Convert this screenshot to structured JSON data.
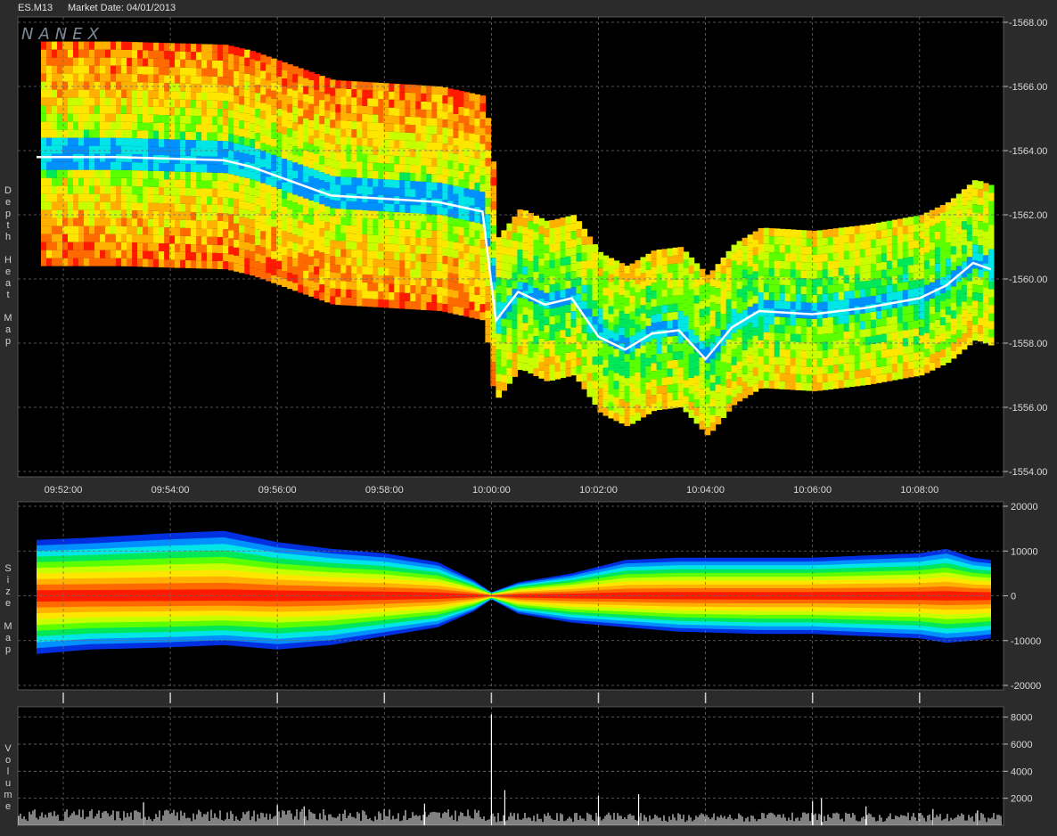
{
  "header": {
    "symbol": "ES.M13",
    "market_date": "Market Date: 04/01/2013"
  },
  "logo": "NANEX",
  "panels": {
    "depth": {
      "side_label": "Depth Heat Map"
    },
    "size": {
      "side_label": "Size Map"
    },
    "volume": {
      "side_label": "Volume"
    }
  },
  "colors": {
    "background": "#000000",
    "frame": "#2b2b2b",
    "grid": "#6a6a6a",
    "price_line": "#ffffff",
    "heat_scale": [
      "#ff1a00",
      "#ff6a00",
      "#ffb000",
      "#ffe600",
      "#c8ff00",
      "#5cff00",
      "#00e85a",
      "#00e6e6",
      "#0090ff",
      "#0030e0"
    ]
  },
  "chart_data": [
    {
      "type": "heatmap",
      "title": "",
      "xlabel": "",
      "ylabel": "Depth Heat Map",
      "x_ticks": [
        "09:52:00",
        "09:54:00",
        "09:56:00",
        "09:58:00",
        "10:00:00",
        "10:02:00",
        "10:04:00",
        "10:06:00",
        "10:08:00"
      ],
      "y_ticks": [
        1568.0,
        1566.0,
        1564.0,
        1562.0,
        1560.0,
        1558.0,
        1556.0,
        1554.0
      ],
      "ylim": [
        1554,
        1568
      ],
      "grid": true,
      "price_series": {
        "name": "",
        "x": [
          "09:51:30",
          "09:53:00",
          "09:55:00",
          "09:55:30",
          "09:57:00",
          "09:58:00",
          "09:59:00",
          "09:59:50",
          "10:00:05",
          "10:00:30",
          "10:01:00",
          "10:01:30",
          "10:02:00",
          "10:02:30",
          "10:03:00",
          "10:03:30",
          "10:04:00",
          "10:04:30",
          "10:05:00",
          "10:06:00",
          "10:07:00",
          "10:08:00",
          "10:08:30",
          "10:09:00",
          "10:09:20"
        ],
        "y": [
          1563.8,
          1563.8,
          1563.7,
          1563.5,
          1562.6,
          1562.5,
          1562.4,
          1562.1,
          1558.7,
          1559.6,
          1559.2,
          1559.4,
          1558.2,
          1557.8,
          1558.3,
          1558.4,
          1557.5,
          1558.5,
          1559.0,
          1558.9,
          1559.1,
          1559.4,
          1559.8,
          1560.5,
          1560.3
        ]
      }
    },
    {
      "type": "area",
      "title": "",
      "ylabel": "Size Map",
      "y_ticks": [
        20000,
        10000,
        0,
        -10000,
        -20000
      ],
      "ylim": [
        -20000,
        20000
      ],
      "grid": true,
      "series": [
        {
          "name": "",
          "x": [
            "09:51:30",
            "09:52:30",
            "09:54:00",
            "09:55:00",
            "09:56:00",
            "09:57:00",
            "09:58:00",
            "09:59:00",
            "09:59:40",
            "10:00:00",
            "10:00:30",
            "10:01:30",
            "10:02:30",
            "10:03:30",
            "10:05:00",
            "10:06:00",
            "10:07:00",
            "10:08:00",
            "10:08:30",
            "10:09:00",
            "10:09:20"
          ],
          "values": [
            12500,
            13000,
            14000,
            14500,
            12000,
            10500,
            9500,
            7500,
            3500,
            800,
            3000,
            5000,
            8000,
            8500,
            8500,
            8500,
            9000,
            9500,
            10500,
            8500,
            8000
          ]
        },
        {
          "name": "",
          "x": [
            "09:51:30",
            "09:52:30",
            "09:54:00",
            "09:55:00",
            "09:56:00",
            "09:57:00",
            "09:58:00",
            "09:59:00",
            "09:59:40",
            "10:00:00",
            "10:00:30",
            "10:01:30",
            "10:02:30",
            "10:03:30",
            "10:05:00",
            "10:06:00",
            "10:07:00",
            "10:08:00",
            "10:08:30",
            "10:09:00",
            "10:09:20"
          ],
          "values": [
            -13000,
            -12000,
            -11500,
            -11000,
            -12000,
            -11000,
            -9000,
            -7000,
            -3500,
            -800,
            -4000,
            -6000,
            -7000,
            -8000,
            -8500,
            -8500,
            -9000,
            -9500,
            -10500,
            -10000,
            -9500
          ]
        }
      ]
    },
    {
      "type": "bar",
      "title": "",
      "ylabel": "Volume",
      "y_ticks": [
        8000,
        6000,
        4000,
        2000
      ],
      "ylim": [
        0,
        8500
      ],
      "grid": true,
      "spikes": {
        "x": [
          "09:53:30",
          "09:56:00",
          "09:56:30",
          "09:58:45",
          "10:00:00",
          "10:00:15",
          "10:02:00",
          "10:02:45",
          "10:06:00",
          "10:06:10",
          "10:07:00",
          "10:08:15",
          "10:09:05"
        ],
        "values": [
          1700,
          1500,
          1400,
          1600,
          8200,
          2600,
          2200,
          2300,
          1800,
          2000,
          1400,
          1200,
          1100
        ]
      }
    }
  ]
}
